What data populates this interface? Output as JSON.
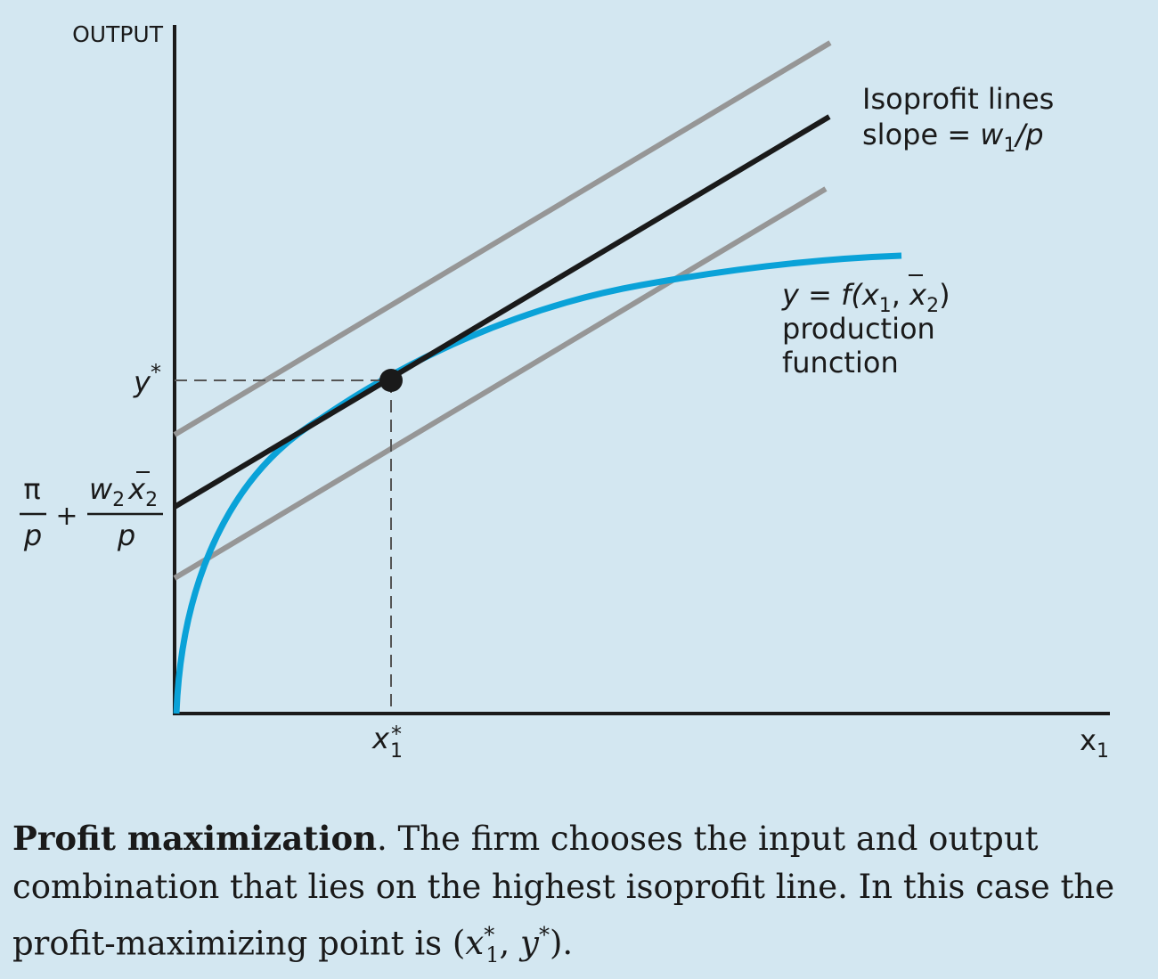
{
  "diagram": {
    "axis_y_label": "OUTPUT",
    "axis_x_label": "x",
    "axis_x_sub": "1",
    "isoprofit_label": {
      "line1": "Isoprofit lines",
      "line2_prefix": "slope = ",
      "w": "w",
      "w_sub": "1",
      "slash_p": "/p"
    },
    "production_label": {
      "eq_prefix": "y = f(x",
      "x1_sub": "1",
      "comma": ", ",
      "x2": "x",
      "x2_sub": "2",
      "close": ")",
      "line2": "production",
      "line3": "function"
    },
    "y_star": {
      "base": "y",
      "sup": "*"
    },
    "x_star": {
      "base": "x",
      "sub": "1",
      "sup": "*"
    },
    "intercept": {
      "pi": "π",
      "p1": "p",
      "plus": "+",
      "w": "w",
      "w_sub": "2",
      "x": "x",
      "x_sub": "2",
      "p2": "p"
    },
    "colors": {
      "background": "#d3e7f1",
      "axis": "#1a1a1a",
      "optimal_isoprofit": "#1a1a1a",
      "other_isoprofit": "#969696",
      "production_curve": "#0aa2d8"
    }
  },
  "caption": {
    "title": "Profit maximization",
    "body": ". The firm chooses the input and output combination that lies on the highest isoprofit line. In this case the profit-maximizing point is ",
    "point_open": "(",
    "x": "x",
    "x_sup": "*",
    "x_sub": "1",
    "comma": ", ",
    "y": "y",
    "y_sup": "*",
    "point_close": ")."
  }
}
